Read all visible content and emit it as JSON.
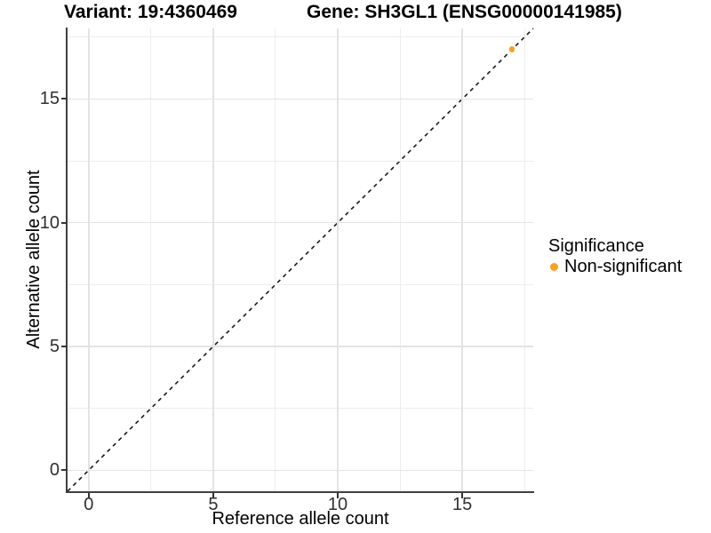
{
  "header": {
    "variant_title": "Variant: 19:4360469",
    "gene_title": "Gene: SH3GL1 (ENSG00000141985)"
  },
  "legend": {
    "title": "Significance",
    "items": [
      {
        "label": "Non-significant",
        "color": "#FBA21B"
      }
    ]
  },
  "chart_data": {
    "type": "scatter",
    "title": "Variant: 19:4360469  |  Gene: SH3GL1 (ENSG00000141985)",
    "xlabel": "Reference allele count",
    "ylabel": "Alternative allele count",
    "xlim": [
      -0.85,
      17.85
    ],
    "ylim": [
      -0.85,
      17.85
    ],
    "x_major_ticks": [
      0,
      5,
      10,
      15
    ],
    "x_minor_ticks": [
      2.5,
      7.5,
      12.5,
      17.5
    ],
    "y_major_ticks": [
      0,
      5,
      10,
      15
    ],
    "y_minor_ticks": [
      2.5,
      7.5,
      12.5,
      17.5
    ],
    "grid": true,
    "legend_position": "right",
    "reference_line": {
      "kind": "identity",
      "equation": "y = x",
      "style": "dashed",
      "color": "#1a1a1a"
    },
    "series": [
      {
        "name": "Non-significant",
        "color": "#FBA21B",
        "points": [
          {
            "x": 17,
            "y": 17
          }
        ]
      }
    ]
  },
  "colors": {
    "background": "#ffffff",
    "axis_line": "#404040",
    "tick_label": "#303030",
    "grid_major": "#e3e3e3",
    "grid_minor": "#ededed",
    "point_orange": "#FBA21B",
    "dashed_line": "#1a1a1a"
  }
}
